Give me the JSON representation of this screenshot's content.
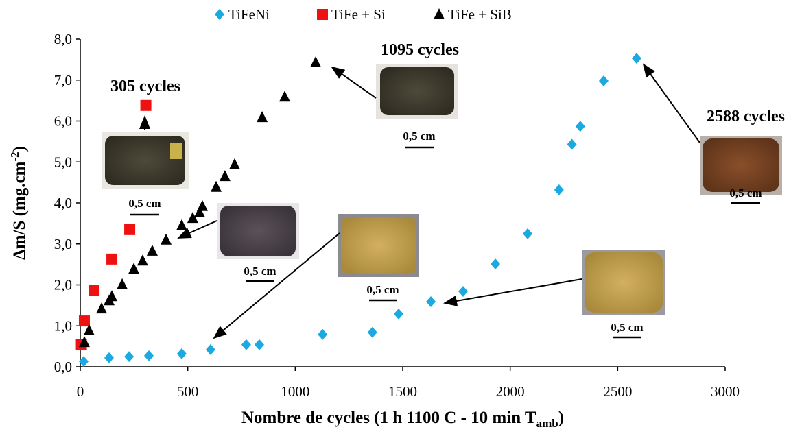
{
  "chart_data": {
    "type": "scatter",
    "x_label": "Nombre de cycles (1 h 1100 C - 10 min T",
    "x_label_sub": "amb",
    "x_label_end": ")",
    "y_label": "Δm/S (mg.cm",
    "y_label_sup": "-2",
    "y_label_end": ")",
    "xlim": [
      0,
      3000
    ],
    "xticks": [
      0,
      500,
      1000,
      1500,
      2000,
      2500,
      3000
    ],
    "ylim": [
      0,
      8
    ],
    "yticks": [
      {
        "value": 0,
        "label": "0,0"
      },
      {
        "value": 1,
        "label": "1,0"
      },
      {
        "value": 2,
        "label": "2,0"
      },
      {
        "value": 3,
        "label": "3,0"
      },
      {
        "value": 4,
        "label": "4,0"
      },
      {
        "value": 5,
        "label": "5,0"
      },
      {
        "value": 6,
        "label": "6,0"
      },
      {
        "value": 7,
        "label": "7,0"
      },
      {
        "value": 8,
        "label": "8,0"
      }
    ],
    "legend": "top",
    "series": [
      {
        "name": "TiFeNi",
        "color": "#1aa9e0",
        "marker": "diamond",
        "x": [
          16,
          134,
          227,
          319,
          472,
          606,
          772,
          833,
          1127,
          1359,
          1481,
          1631,
          1781,
          1931,
          2081,
          2227,
          2287,
          2326,
          2435,
          2588
        ],
        "values": [
          0.13,
          0.22,
          0.25,
          0.27,
          0.32,
          0.42,
          0.54,
          0.54,
          0.79,
          0.84,
          1.29,
          1.59,
          1.84,
          2.51,
          3.25,
          4.32,
          5.43,
          5.87,
          6.98,
          7.53
        ]
      },
      {
        "name": "TiFe + Si",
        "color": "#ee1111",
        "marker": "square",
        "x": [
          5,
          19,
          64,
          147,
          230,
          305
        ],
        "values": [
          0.54,
          1.12,
          1.87,
          2.63,
          3.35,
          6.38
        ]
      },
      {
        "name": "TiFe + SiB",
        "color": "#000000",
        "marker": "triangle",
        "x": [
          19,
          41,
          99,
          134,
          147,
          195,
          249,
          290,
          335,
          399,
          472,
          523,
          555,
          568,
          632,
          673,
          718,
          846,
          951,
          1095
        ],
        "values": [
          0.6,
          0.89,
          1.42,
          1.62,
          1.72,
          2.01,
          2.39,
          2.59,
          2.83,
          3.1,
          3.45,
          3.63,
          3.77,
          3.92,
          4.39,
          4.65,
          4.94,
          6.09,
          6.59,
          7.43
        ]
      }
    ],
    "annotations": [
      "305 cycles",
      "1095 cycles",
      "2588 cycles"
    ],
    "scale_labels": [
      "0,5 cm",
      "0,5 cm",
      "0,5 cm",
      "0,5 cm",
      "0,5 cm",
      "0,5 cm"
    ]
  }
}
